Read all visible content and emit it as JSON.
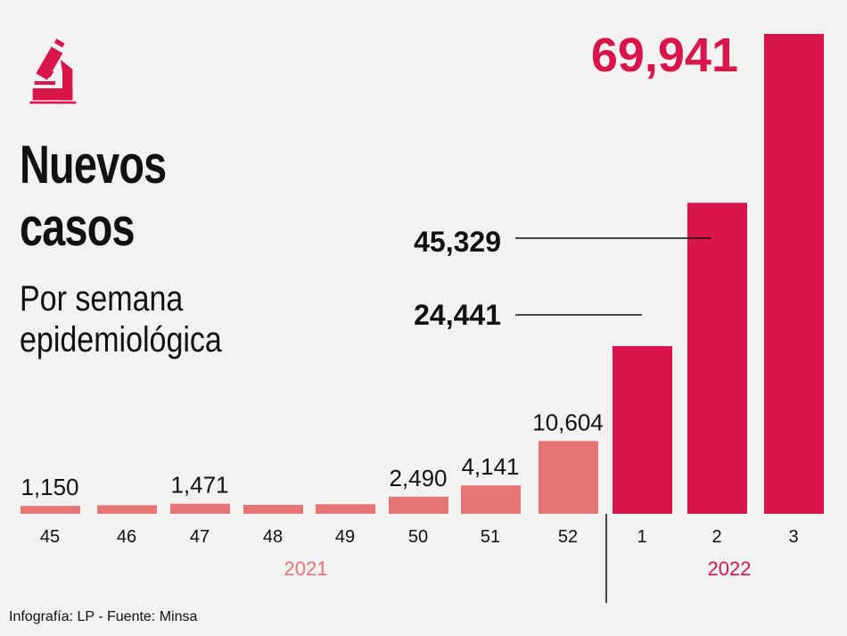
{
  "title": "Nuevos casos",
  "title_lines": [
    "Nuevos",
    "casos"
  ],
  "subtitle_lines": [
    "Por semana",
    "epidemiológica"
  ],
  "source": "Infografía: LP - Fuente: Minsa",
  "icon": "microscope-icon",
  "colors": {
    "bars_2021": "#e47476",
    "bars_2022": "#d9164c",
    "highlight_label": "#d9164c",
    "text": "#111111"
  },
  "chart_data": {
    "type": "bar",
    "categories": [
      "45",
      "46",
      "47",
      "48",
      "49",
      "50",
      "51",
      "52",
      "1",
      "2",
      "3"
    ],
    "values": [
      1150,
      1250,
      1471,
      1300,
      1400,
      2490,
      4141,
      10604,
      24441,
      45329,
      69941
    ],
    "data_labels": [
      "1,150",
      "",
      "1,471",
      "",
      "",
      "2,490",
      "4,141",
      "10,604",
      "24,441",
      "45,329",
      "69,941"
    ],
    "groups": [
      {
        "name": "2021",
        "categories": [
          "45",
          "46",
          "47",
          "48",
          "49",
          "50",
          "51",
          "52"
        ]
      },
      {
        "name": "2022",
        "categories": [
          "1",
          "2",
          "3"
        ]
      }
    ],
    "title": "Nuevos casos",
    "xlabel": "",
    "ylabel": "",
    "grid": false,
    "legend": "none"
  }
}
